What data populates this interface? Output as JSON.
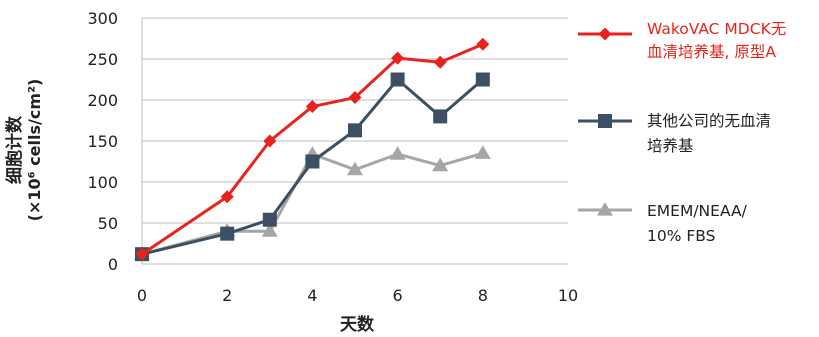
{
  "chart_data": {
    "type": "line",
    "xlabel": "天数",
    "ylabel": [
      "细胞计数",
      "(×10⁶ cells/cm²)"
    ],
    "xlim": [
      0,
      10
    ],
    "ylim": [
      0,
      300
    ],
    "x_ticks": [
      0,
      2,
      4,
      6,
      8,
      10
    ],
    "y_ticks": [
      0,
      50,
      100,
      150,
      200,
      250,
      300
    ],
    "grid": "horizontal",
    "legend_position": "right",
    "series": [
      {
        "name": "WakoVAC MDCK无血清培养基, 原型A",
        "name_lines": [
          "WakoVAC MDCK无",
          "血清培养基, 原型A"
        ],
        "color": "#e8231d",
        "marker": "diamond",
        "x": [
          0,
          2,
          3,
          4,
          5,
          6,
          7,
          8
        ],
        "y": [
          12,
          82,
          150,
          192,
          203,
          251,
          246,
          268
        ]
      },
      {
        "name": "其他公司的无血清培养基",
        "name_lines": [
          "其他公司的无血清",
          "培养基"
        ],
        "color": "#3d4f63",
        "marker": "square",
        "x": [
          0,
          2,
          3,
          4,
          5,
          6,
          7,
          8
        ],
        "y": [
          12,
          37,
          54,
          125,
          163,
          225,
          180,
          225
        ]
      },
      {
        "name": "EMEM/NEAA/10% FBS",
        "name_lines": [
          "EMEM/NEAA/",
          "10% FBS"
        ],
        "color": "#a6a6a6",
        "marker": "triangle",
        "x": [
          0,
          2,
          3,
          4,
          5,
          6,
          7,
          8
        ],
        "y": [
          12,
          40,
          40,
          134,
          115,
          134,
          120,
          135
        ]
      }
    ]
  }
}
